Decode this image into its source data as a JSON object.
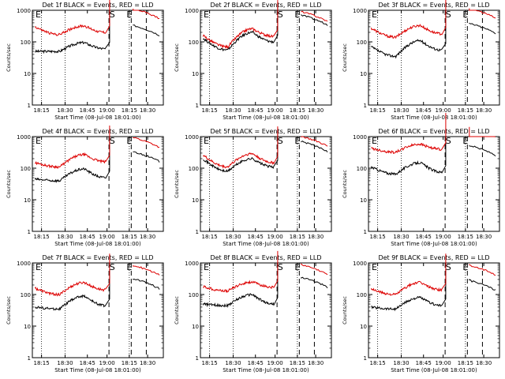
{
  "chart_data": [
    {
      "type": "line",
      "title": "Det 1f BLACK = Events, RED = LLD",
      "xlabel": "Start Time (08-Jul-08 18:01:00)",
      "ylabel": "Counts/sec",
      "x_ticks": [
        "18:15",
        "18:30",
        "18:45",
        "19:00",
        "18:15",
        "18:30"
      ],
      "y_ticks": [
        "1",
        "10",
        "100",
        "1000"
      ],
      "yscale": "log",
      "ylim": [
        1,
        1000
      ],
      "markers": [
        "S",
        "E"
      ],
      "series": [
        {
          "color": "#000000",
          "y_start": 50,
          "y_trough": 50,
          "y_peak": 95,
          "y_end": 60
        },
        {
          "color": "#dd0000",
          "y_start": 300,
          "y_trough": 170,
          "y_peak": 320,
          "y_end": 200
        }
      ]
    },
    {
      "type": "line",
      "title": "Det 2f BLACK = Events, RED = LLD",
      "xlabel": "Start Time (08-Jul-08 18:01:00)",
      "ylabel": "Counts/sec",
      "x_ticks": [
        "18:15",
        "18:30",
        "18:45",
        "19:00",
        "18:15",
        "18:30"
      ],
      "y_ticks": [
        "1",
        "10",
        "100",
        "1000"
      ],
      "yscale": "log",
      "ylim": [
        1,
        1000
      ],
      "markers": [
        "S",
        "E"
      ],
      "series": [
        {
          "color": "#000000",
          "y_start": 130,
          "y_trough": 55,
          "y_peak": 200,
          "y_end": 100
        },
        {
          "color": "#dd0000",
          "y_start": 160,
          "y_trough": 70,
          "y_peak": 260,
          "y_end": 150
        }
      ]
    },
    {
      "type": "line",
      "title": "Det 3f BLACK = Events, RED = LLD",
      "xlabel": "Start Time (08-Jul-08 18:01:00)",
      "ylabel": "Counts/sec",
      "x_ticks": [
        "18:15",
        "18:30",
        "18:45",
        "19:00",
        "18:15",
        "18:30"
      ],
      "y_ticks": [
        "1",
        "10",
        "100",
        "1000"
      ],
      "yscale": "log",
      "ylim": [
        1,
        1000
      ],
      "markers": [
        "S",
        "E"
      ],
      "series": [
        {
          "color": "#000000",
          "y_start": 70,
          "y_trough": 35,
          "y_peak": 110,
          "y_end": 55
        },
        {
          "color": "#dd0000",
          "y_start": 270,
          "y_trough": 140,
          "y_peak": 330,
          "y_end": 180
        }
      ]
    },
    {
      "type": "line",
      "title": "Det 4f BLACK = Events, RED = LLD",
      "xlabel": "Start Time (08-Jul-08 18:01:00)",
      "ylabel": "Counts/sec",
      "x_ticks": [
        "18:15",
        "18:30",
        "18:45",
        "19:00",
        "18:15",
        "18:30"
      ],
      "y_ticks": [
        "1",
        "10",
        "100",
        "1000"
      ],
      "yscale": "log",
      "ylim": [
        1,
        1000
      ],
      "markers": [
        "S",
        "E"
      ],
      "series": [
        {
          "color": "#000000",
          "y_start": 45,
          "y_trough": 40,
          "y_peak": 95,
          "y_end": 50
        },
        {
          "color": "#dd0000",
          "y_start": 150,
          "y_trough": 110,
          "y_peak": 270,
          "y_end": 160
        }
      ]
    },
    {
      "type": "line",
      "title": "Det 5f BLACK = Events, RED = LLD",
      "xlabel": "Start Time (08-Jul-08 18:01:00)",
      "ylabel": "Counts/sec",
      "x_ticks": [
        "18:15",
        "18:30",
        "18:45",
        "19:00",
        "18:15",
        "18:30"
      ],
      "y_ticks": [
        "1",
        "10",
        "100",
        "1000"
      ],
      "yscale": "log",
      "ylim": [
        1,
        1000
      ],
      "markers": [
        "S",
        "E"
      ],
      "series": [
        {
          "color": "#000000",
          "y_start": 200,
          "y_trough": 80,
          "y_peak": 200,
          "y_end": 110
        },
        {
          "color": "#dd0000",
          "y_start": 260,
          "y_trough": 110,
          "y_peak": 290,
          "y_end": 150
        }
      ]
    },
    {
      "type": "line",
      "title": "Det 6f BLACK = Events, RED = LLD",
      "xlabel": "Start Time (08-Jul-08 18:01:00)",
      "ylabel": "Counts/sec",
      "x_ticks": [
        "18:15",
        "18:30",
        "18:45",
        "19:00",
        "18:15",
        "18:30"
      ],
      "y_ticks": [
        "1",
        "10",
        "100",
        "1000"
      ],
      "yscale": "log",
      "ylim": [
        1,
        1000
      ],
      "markers": [
        "S",
        "E"
      ],
      "series": [
        {
          "color": "#000000",
          "y_start": 110,
          "y_trough": 65,
          "y_peak": 150,
          "y_end": 75
        },
        {
          "color": "#dd0000",
          "y_start": 430,
          "y_trough": 320,
          "y_peak": 580,
          "y_end": 400
        }
      ]
    },
    {
      "type": "line",
      "title": "Det 7f BLACK = Events, RED = LLD",
      "xlabel": "Start Time (08-Jul-08 18:01:00)",
      "ylabel": "Counts/sec",
      "x_ticks": [
        "18:15",
        "18:30",
        "18:45",
        "19:00",
        "18:15",
        "18:30"
      ],
      "y_ticks": [
        "1",
        "10",
        "100",
        "1000"
      ],
      "yscale": "log",
      "ylim": [
        1,
        1000
      ],
      "markers": [
        "S",
        "E"
      ],
      "series": [
        {
          "color": "#000000",
          "y_start": 40,
          "y_trough": 35,
          "y_peak": 90,
          "y_end": 45
        },
        {
          "color": "#dd0000",
          "y_start": 160,
          "y_trough": 100,
          "y_peak": 240,
          "y_end": 140
        }
      ]
    },
    {
      "type": "line",
      "title": "Det 8f BLACK = Events, RED = LLD",
      "xlabel": "Start Time (08-Jul-08 18:01:00)",
      "ylabel": "Counts/sec",
      "x_ticks": [
        "18:15",
        "18:30",
        "18:45",
        "19:00",
        "18:15",
        "18:30"
      ],
      "y_ticks": [
        "1",
        "10",
        "100",
        "1000"
      ],
      "yscale": "log",
      "ylim": [
        1,
        1000
      ],
      "markers": [
        "S",
        "E"
      ],
      "series": [
        {
          "color": "#000000",
          "y_start": 50,
          "y_trough": 45,
          "y_peak": 100,
          "y_end": 50
        },
        {
          "color": "#dd0000",
          "y_start": 180,
          "y_trough": 130,
          "y_peak": 250,
          "y_end": 170
        }
      ]
    },
    {
      "type": "line",
      "title": "Det 9f BLACK = Events, RED = LLD",
      "xlabel": "Start Time (08-Jul-08 18:01:00)",
      "ylabel": "Counts/sec",
      "x_ticks": [
        "18:15",
        "18:30",
        "18:45",
        "19:00",
        "18:15",
        "18:30"
      ],
      "y_ticks": [
        "1",
        "10",
        "100",
        "1000"
      ],
      "yscale": "log",
      "ylim": [
        1,
        1000
      ],
      "markers": [
        "S",
        "E"
      ],
      "series": [
        {
          "color": "#000000",
          "y_start": 40,
          "y_trough": 35,
          "y_peak": 80,
          "y_end": 45
        },
        {
          "color": "#dd0000",
          "y_start": 150,
          "y_trough": 100,
          "y_peak": 240,
          "y_end": 140
        }
      ]
    }
  ]
}
